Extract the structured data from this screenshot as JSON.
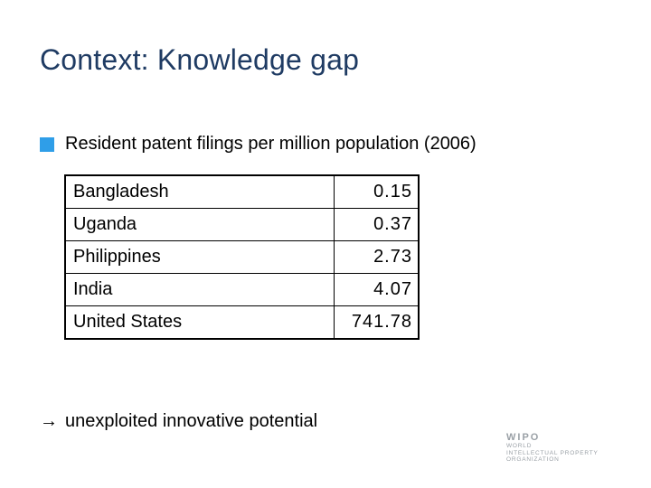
{
  "slide": {
    "title": "Context: Knowledge gap",
    "bullet": {
      "icon": "square-bullet-icon",
      "color": "#2f9ee8",
      "text": "Resident patent filings per million population (2006)"
    },
    "table": {
      "rows": [
        {
          "country": "Bangladesh",
          "value": "0.15"
        },
        {
          "country": "Uganda",
          "value": "0.37"
        },
        {
          "country": "Philippines",
          "value": "2.73"
        },
        {
          "country": "India",
          "value": "4.07"
        },
        {
          "country": "United States",
          "value": "741.78"
        }
      ]
    },
    "conclusion": {
      "icon": "right-arrow-icon",
      "text": "unexploited innovative potential"
    },
    "logo": {
      "main": "WIPO",
      "lines": [
        "WORLD",
        "INTELLECTUAL PROPERTY",
        "ORGANIZATION"
      ]
    },
    "title_color": "#1f3b63"
  }
}
